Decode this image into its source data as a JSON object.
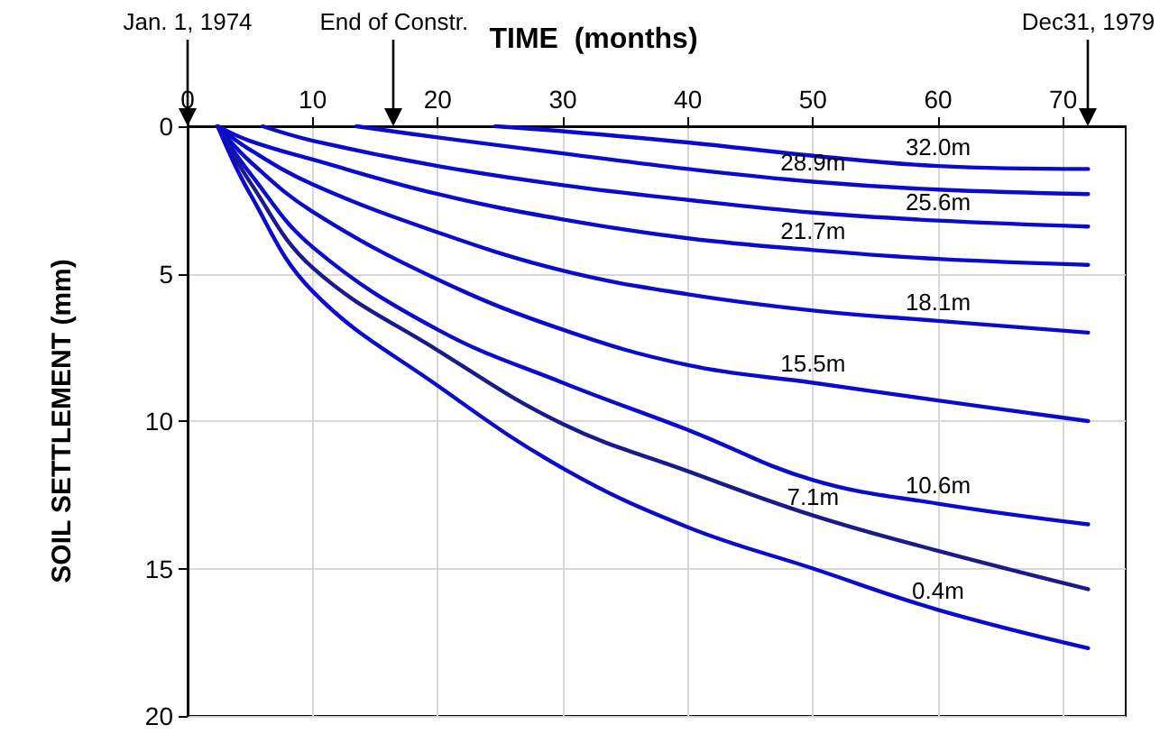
{
  "chart_data": {
    "type": "line",
    "xlabel": "TIME  (months)",
    "ylabel": "SOIL SETTLEMENT (mm)",
    "xlim": [
      0,
      75
    ],
    "xticks": [
      0,
      10,
      20,
      30,
      40,
      50,
      60,
      70
    ],
    "ylim": [
      20,
      0
    ],
    "yticks": [
      0,
      5,
      10,
      15,
      20
    ],
    "grid": true,
    "line_style": "solid",
    "marker": "none",
    "series": [
      {
        "name": "32.0m",
        "color": "#0b0bd0",
        "x": [
          24.6,
          30,
          40,
          50,
          60,
          72
        ],
        "values": [
          0,
          0.17,
          0.55,
          1.0,
          1.35,
          1.45
        ]
      },
      {
        "name": "28.9m",
        "color": "#0b0bd0",
        "x": [
          13.5,
          20,
          30,
          40,
          50,
          60,
          72
        ],
        "values": [
          0,
          0.38,
          0.92,
          1.45,
          1.88,
          2.15,
          2.3
        ]
      },
      {
        "name": "25.6m",
        "color": "#0b0bd0",
        "x": [
          6,
          10,
          20,
          30,
          40,
          50,
          60,
          72
        ],
        "values": [
          0,
          0.49,
          1.35,
          2.0,
          2.5,
          2.93,
          3.2,
          3.4
        ]
      },
      {
        "name": "21.7m",
        "color": "#0b0bd0",
        "x": [
          2.4,
          5,
          10,
          20,
          30,
          40,
          50,
          60,
          72
        ],
        "values": [
          0,
          0.5,
          1.13,
          2.3,
          3.16,
          3.8,
          4.2,
          4.5,
          4.7
        ]
      },
      {
        "name": "18.1m",
        "color": "#0b0bd0",
        "x": [
          2.4,
          5,
          10,
          20,
          30,
          40,
          50,
          60,
          72
        ],
        "values": [
          0,
          0.8,
          1.97,
          3.6,
          4.9,
          5.7,
          6.25,
          6.6,
          7.0
        ]
      },
      {
        "name": "15.5m",
        "color": "#0b0bd0",
        "x": [
          2.4,
          5,
          10,
          20,
          30,
          40,
          50,
          60,
          72
        ],
        "values": [
          0,
          1.2,
          2.9,
          5.2,
          6.9,
          8.1,
          8.7,
          9.3,
          10.0
        ]
      },
      {
        "name": "10.6m",
        "color": "#0b0bd0",
        "x": [
          2.4,
          5,
          10,
          20,
          30,
          40,
          50,
          60,
          72
        ],
        "values": [
          0,
          1.6,
          4.1,
          6.9,
          8.7,
          10.3,
          12.0,
          12.8,
          13.5
        ]
      },
      {
        "name": "7.1m",
        "color": "#1a1a8c",
        "x": [
          2.4,
          5,
          10,
          20,
          30,
          40,
          50,
          60,
          72
        ],
        "values": [
          0,
          1.9,
          4.8,
          7.6,
          10.1,
          11.7,
          13.2,
          14.4,
          15.7
        ]
      },
      {
        "name": "0.4m",
        "color": "#0b0bd0",
        "x": [
          2.4,
          5,
          10,
          20,
          30,
          40,
          50,
          60,
          72
        ],
        "values": [
          0,
          2.3,
          5.6,
          8.8,
          11.6,
          13.6,
          15.0,
          16.4,
          17.7
        ]
      }
    ],
    "ref_lines": [
      {
        "axis": "x",
        "value": 0,
        "label": "Jan. 1, 1974"
      },
      {
        "axis": "x",
        "value": 16.5,
        "label": "End of Constr."
      },
      {
        "axis": "x",
        "value": 72,
        "label": "Dec31, 1979"
      }
    ]
  }
}
